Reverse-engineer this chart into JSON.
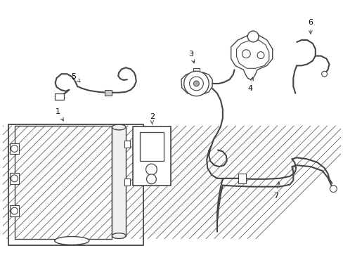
{
  "bg_color": "#ffffff",
  "line_color": "#444444",
  "label_color": "#000000",
  "fig_width": 4.89,
  "fig_height": 3.6,
  "dpi": 100
}
